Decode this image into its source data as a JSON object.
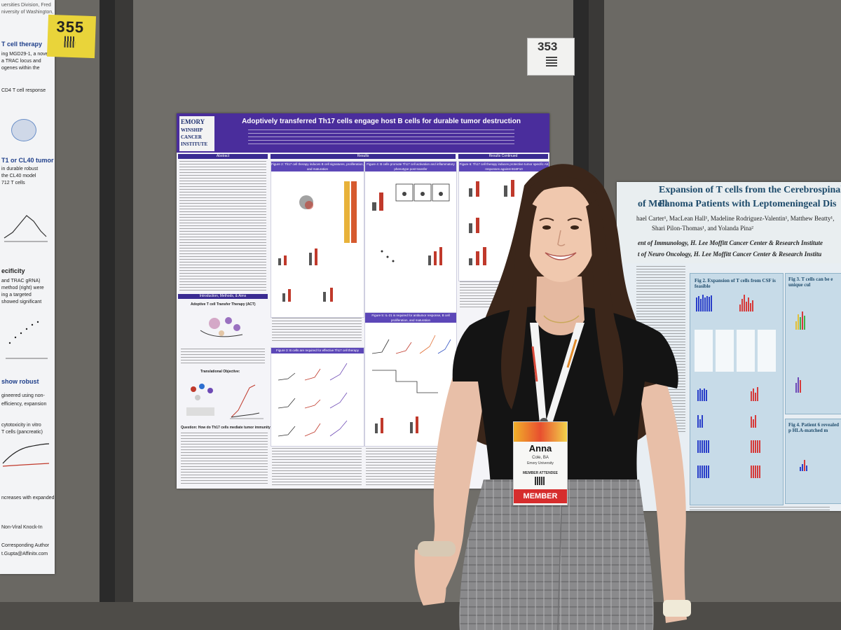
{
  "tags": {
    "left_number": "355",
    "right_number": "353"
  },
  "poster_main": {
    "logo_line1": "EMORY",
    "logo_line2": "WINSHIP",
    "logo_line3": "CANCER",
    "logo_line4": "INSTITUTE",
    "title": "Adoptively transferred Th17 cells engage host B cells for durable tumor destruction",
    "section_abstract": "Abstract",
    "section_results": "Results",
    "section_results_continued": "Results Continued",
    "section_intro": "Introduction, Methods, & Aims",
    "intro_subtitle": "Adoptive T cell Transfer Therapy (ACT)",
    "translational_objective": "Translational Objective:",
    "question": "Question: How do Th17 cells mediate tumor immunity?",
    "fig2_title": "Figure 2: Th17 cell therapy induces B cell signatures, proliferation, and maturation",
    "fig4_title": "Figure 4: B cells promote Th17 cell activation and inflammatory phenotype post transfer",
    "fig6_title": "Figure 6: Th17 cell therapy induces protective tumor specific Ab responses against B16F10",
    "fig3_title": "Figure 3: B cells are required for effective Th17 cell therapy",
    "fig5_title": "Figure 5: IL-21 is required for antitumor response, B cell proliferation, and maturation"
  },
  "poster_right": {
    "title_line1": "Expansion of T cells from the Cerebrospinal Fl",
    "title_line2": "of Melanoma Patients with Leptomeningeal Dis",
    "authors_line1": "hael Carter¹, MacLean Hall¹, Madeline Rodriguez-Valentin¹, Matthew Beatty¹,",
    "authors_line2": "Shari Pilon-Thomas¹, and Yolanda Pina²",
    "dept_line1": "ent of Immunology, H. Lee Moffitt Cancer Center & Research Institute",
    "dept_line2": "t of Neuro Oncology, H. Lee Moffitt Cancer Center & Research Institu",
    "fig2_title": "Fig 2. Expansion of T cells from CSF is feasible",
    "fig3_title": "Fig 3. T cells can be e unique cul",
    "fig4_title": "Fig 4. Patient 6 revealed p HLA-matched m"
  },
  "poster_left": {
    "lines": [
      "T cell therapy",
      "ing MGD29-1, a novel",
      "a TRAC locus and",
      "ogenes within the",
      "CD4 T cell response",
      "T1 or CL40 tumor",
      "in durable robust",
      "the CL40 model",
      "712 T cells",
      "ecificity",
      "and TRAC gRNA)",
      "method (right) were",
      "ing a targeted",
      "showed significant",
      "show robust",
      "gineered using non-",
      "efficiency, expansion",
      "cytotoxicity in vitro",
      "T cells (pancreatic)",
      "ncreases with expanded",
      "Non-Viral Knock-In",
      "Corresponding Author",
      "t.Gupta@Affinitx.com"
    ]
  },
  "badge": {
    "name": "Anna",
    "detail": "Cole, BA",
    "org": "Emory University",
    "role": "MEMBER ATTENDEE",
    "ribbon": "MEMBER"
  }
}
